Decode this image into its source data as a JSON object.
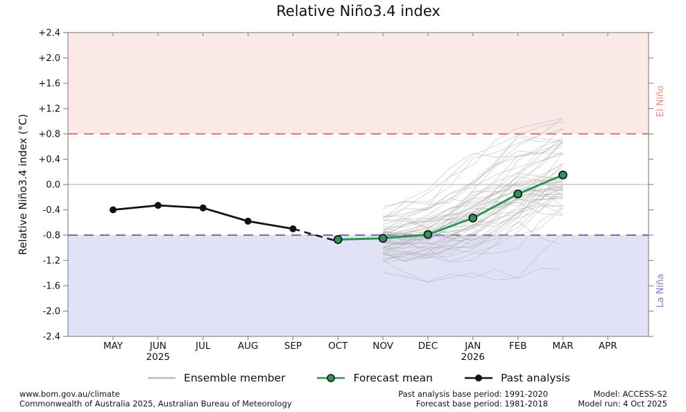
{
  "chart_data": {
    "type": "line",
    "title": "Relative Niño3.4 index",
    "ylabel": "Relative Niño3.4 index (°C)",
    "ylim": [
      -2.4,
      2.4
    ],
    "ytick_values": [
      2.4,
      2.0,
      1.6,
      1.2,
      0.8,
      0.4,
      0.0,
      -0.4,
      -0.8,
      -1.2,
      -1.6,
      -2.0,
      -2.4
    ],
    "ytick_labels": [
      "+2.4",
      "+2.0",
      "+1.6",
      "+1.2",
      "+0.8",
      "+0.4",
      "0.0",
      "-0.4",
      "-0.8",
      "-1.2",
      "-1.6",
      "-2.0",
      "-2.4"
    ],
    "months": [
      "MAY",
      "JUN",
      "JUL",
      "AUG",
      "SEP",
      "OCT",
      "NOV",
      "DEC",
      "JAN",
      "FEB",
      "MAR",
      "APR"
    ],
    "year_labels": [
      {
        "month_index": 1,
        "label": "2025"
      },
      {
        "month_index": 8,
        "label": "2026"
      }
    ],
    "grid": "zero-line-only",
    "zero_line_color": "#b0b0b0",
    "axis_color": "#8a8a8a",
    "bands": {
      "el_nino": {
        "label": "El Niño",
        "threshold": 0.8,
        "fill": "#fbe9e8",
        "line_color": "#f46d6d",
        "label_color": "#ef8a80"
      },
      "la_nina": {
        "label": "La Niña",
        "threshold": -0.8,
        "fill": "#e2e2f6",
        "line_color": "#6b6bbf",
        "label_color": "#7d7dc8"
      }
    },
    "series": {
      "past_analysis": {
        "label": "Past analysis",
        "color": "#111111",
        "months": [
          "MAY",
          "JUN",
          "JUL",
          "AUG",
          "SEP"
        ],
        "values": [
          -0.4,
          -0.33,
          -0.37,
          -0.58,
          -0.7
        ],
        "dashed_tail": {
          "month": "OCT",
          "value": -0.87
        }
      },
      "forecast_mean": {
        "label": "Forecast mean",
        "color": "#2e9556",
        "marker_edge": "#111111",
        "months": [
          "OCT",
          "NOV",
          "DEC",
          "JAN",
          "FEB",
          "MAR"
        ],
        "values": [
          -0.87,
          -0.85,
          -0.79,
          -0.53,
          -0.15,
          0.15
        ]
      },
      "ensemble": {
        "label": "Ensemble member",
        "color": "#aaaaaa",
        "opacity": 0.5,
        "count": 60,
        "seed": 12,
        "months": [
          "NOV",
          "DEC",
          "JAN",
          "FEB",
          "MAR"
        ],
        "mean": [
          -0.85,
          -0.79,
          -0.53,
          -0.15,
          0.15
        ],
        "sd": [
          0.22,
          0.3,
          0.38,
          0.44,
          0.48
        ],
        "clamp": [
          -1.75,
          1.05
        ]
      }
    },
    "legend": [
      {
        "label": "Ensemble member",
        "swatch": "line"
      },
      {
        "label": "Forecast mean",
        "swatch": "line-marker"
      },
      {
        "label": "Past analysis",
        "swatch": "line-marker"
      }
    ]
  },
  "footer": {
    "site": "www.bom.gov.au/climate",
    "copyright": "Commonwealth of Australia 2025, Australian Bureau of Meteorology",
    "past_base": "Past analysis base period: 1991-2020",
    "forecast_base": "Forecast base period: 1981-2018",
    "model": "Model: ACCESS-S2",
    "model_run": "Model run: 4 Oct 2025"
  }
}
